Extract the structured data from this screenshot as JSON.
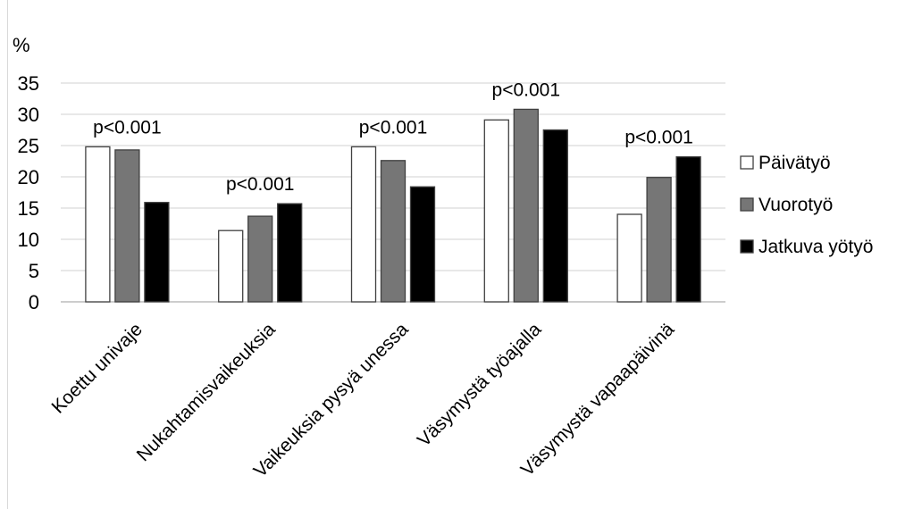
{
  "chart_data": {
    "type": "bar",
    "ylabel": "%",
    "ylim": [
      0,
      35
    ],
    "yticks": [
      0,
      5,
      10,
      15,
      20,
      25,
      30,
      35
    ],
    "grid": true,
    "legend_position": "right",
    "categories": [
      "Koettu univaje",
      "Nukahtamisvaikeuksia",
      "Vaikeuksia pysyä unessa",
      "Väsymystä työajalla",
      "Väsymystä vapaapäivinä"
    ],
    "series": [
      {
        "name": "Päivätyö",
        "values": [
          24.8,
          11.4,
          24.8,
          29.1,
          14.0
        ]
      },
      {
        "name": "Vuorotyö",
        "values": [
          24.3,
          13.7,
          22.6,
          30.8,
          19.9
        ]
      },
      {
        "name": "Jatkuva yötyö",
        "values": [
          15.9,
          15.7,
          18.4,
          27.5,
          23.2
        ]
      }
    ],
    "annotations": [
      "p<0.001",
      "p<0.001",
      "p<0.001",
      "p<0.001",
      "p<0.001"
    ]
  },
  "colors": {
    "series": [
      "#ffffff",
      "#767676",
      "#000000"
    ],
    "outline": "#404040",
    "grid": "#d9d9d9"
  }
}
